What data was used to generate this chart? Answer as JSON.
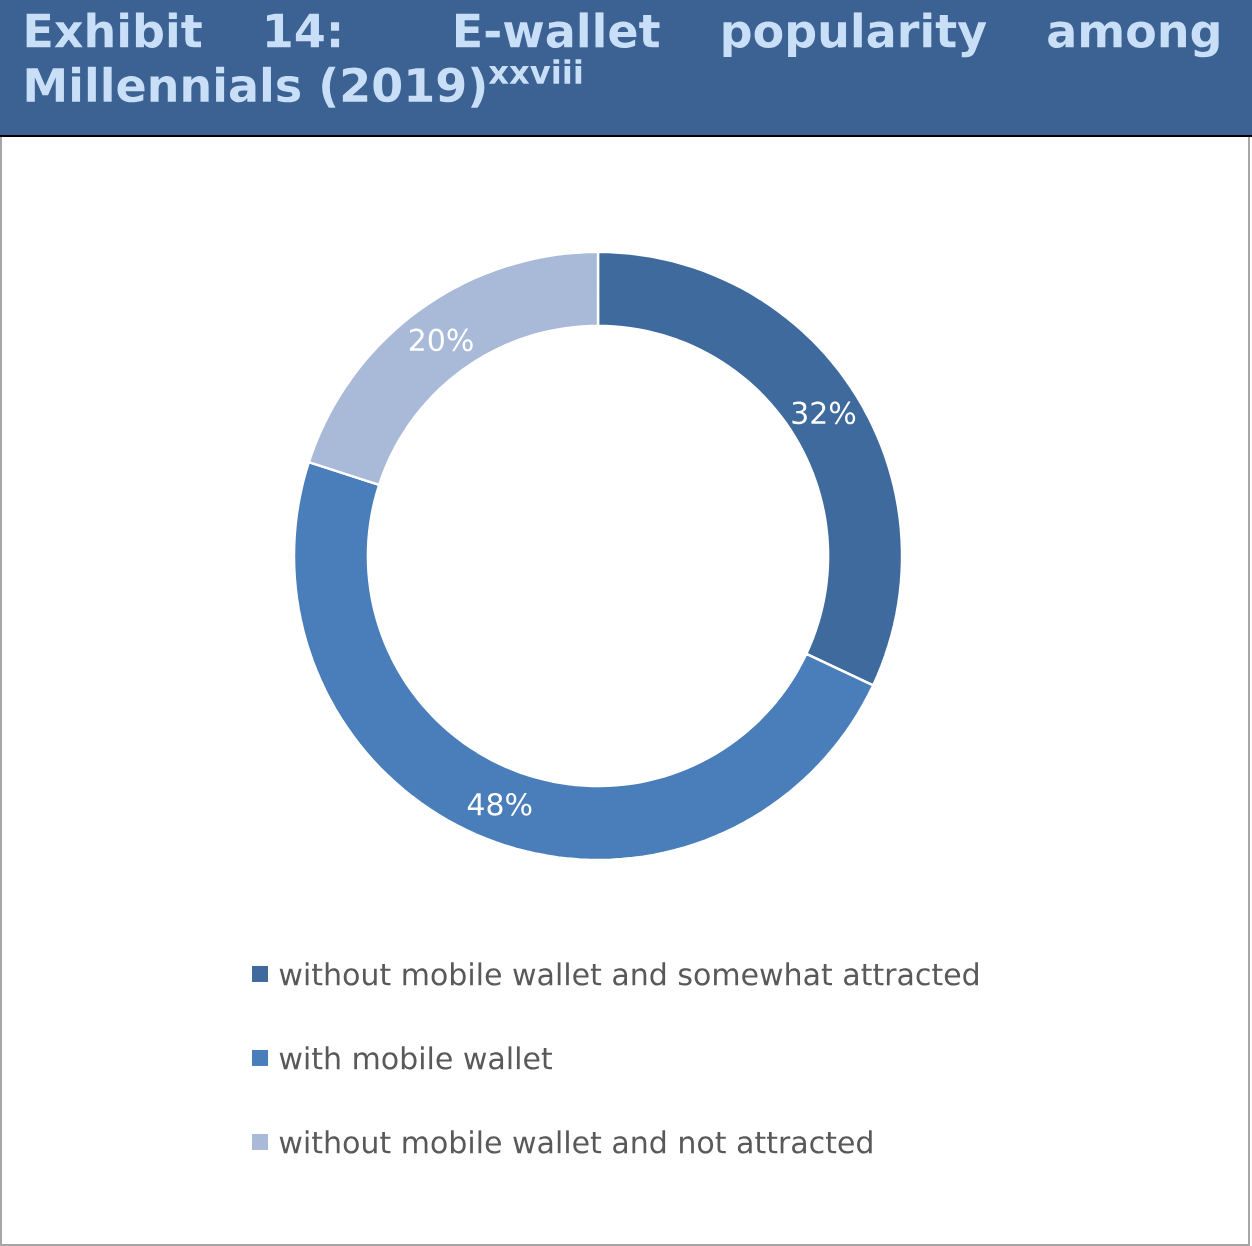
{
  "chart_data": {
    "type": "donut",
    "title": "Exhibit 14: E-wallet popularity among Millennials (2019)$^{xxviii}$",
    "categories": [
      "without mobile wallet and somewhat attracted",
      "with mobile wallet",
      "without mobile wallet and not attracted"
    ],
    "values": [
      32,
      48,
      20
    ],
    "colors": [
      "#3f6a9e",
      "#4a7ebb",
      "#a9b9d8"
    ],
    "value_labels": [
      "32%",
      "48%",
      "20%"
    ],
    "legend": "bottom"
  }
}
